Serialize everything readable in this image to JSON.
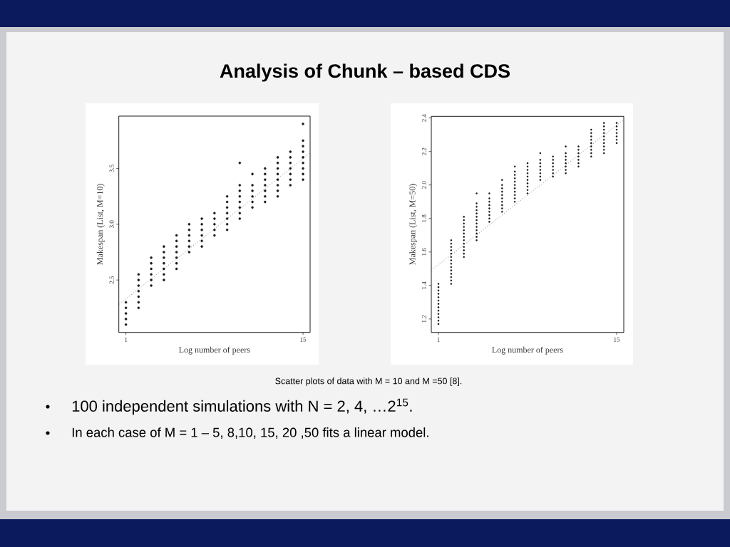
{
  "chart_data": [
    {
      "type": "scatter",
      "title": "Analysis of Chunk – based CDS",
      "xlabel": "Log number of peers",
      "ylabel": "Makespan (List, M=10)",
      "xlim": [
        0.44,
        15.56
      ],
      "ylim": [
        2.03,
        3.97
      ],
      "xticks": [
        1,
        15
      ],
      "yticks": [
        2.5,
        {
          "value": 3,
          "label": "3.0"
        },
        3.5
      ],
      "marker": "circle",
      "series": [
        {
          "color": "#1a1a1a",
          "x": [
            1,
            1,
            1,
            1,
            1,
            2,
            2,
            2,
            2,
            2,
            2,
            2,
            3,
            3,
            3,
            3,
            3,
            3,
            4,
            4,
            4,
            4,
            4,
            4,
            4,
            5,
            5,
            5,
            5,
            5,
            5,
            5,
            6,
            6,
            6,
            6,
            6,
            6,
            7,
            7,
            7,
            7,
            7,
            7,
            8,
            8,
            8,
            8,
            8,
            9,
            9,
            9,
            9,
            9,
            9,
            9,
            10,
            10,
            10,
            10,
            10,
            10,
            10,
            10,
            11,
            11,
            11,
            11,
            11,
            11,
            12,
            12,
            12,
            12,
            12,
            12,
            12,
            13,
            13,
            13,
            13,
            13,
            13,
            13,
            13,
            14,
            14,
            14,
            14,
            14,
            14,
            14,
            15,
            15,
            15,
            15,
            15,
            15,
            15,
            15,
            15
          ],
          "values": [
            2.3,
            2.25,
            2.2,
            2.15,
            2.1,
            2.55,
            2.5,
            2.45,
            2.4,
            2.35,
            2.3,
            2.25,
            2.7,
            2.65,
            2.6,
            2.55,
            2.5,
            2.45,
            2.8,
            2.75,
            2.7,
            2.65,
            2.6,
            2.55,
            2.5,
            2.9,
            2.85,
            2.8,
            2.75,
            2.7,
            2.65,
            2.6,
            3,
            2.95,
            2.9,
            2.85,
            2.8,
            2.75,
            3.05,
            3,
            2.95,
            2.9,
            2.85,
            2.8,
            3.1,
            3.05,
            3,
            2.95,
            2.9,
            3.25,
            3.2,
            3.15,
            3.1,
            3.05,
            3,
            2.95,
            3.55,
            3.35,
            3.3,
            3.25,
            3.2,
            3.15,
            3.1,
            3.05,
            3.45,
            3.35,
            3.3,
            3.25,
            3.2,
            3.15,
            3.5,
            3.45,
            3.4,
            3.35,
            3.3,
            3.25,
            3.2,
            3.6,
            3.55,
            3.5,
            3.45,
            3.4,
            3.35,
            3.3,
            3.25,
            3.65,
            3.6,
            3.55,
            3.5,
            3.45,
            3.4,
            3.35,
            3.9,
            3.75,
            3.7,
            3.65,
            3.6,
            3.55,
            3.5,
            3.45,
            3.4
          ]
        },
        {
          "type": "line",
          "color": "#666666",
          "line_style": "dotted",
          "marker": "none",
          "x": [
            0.44,
            15.56
          ],
          "values": [
            2.28,
            3.64
          ]
        }
      ],
      "annotations": [
        "Scatter plots of data with M = 10 and M =50 [8].",
        "100 independent simulations with N = 2, 4, …2$^{15}$.",
        "In each case of M = 1 – 5, 8,10, 15, 20 ,50 fits a linear model."
      ]
    },
    {
      "type": "scatter",
      "xlabel": "Log number of peers",
      "ylabel": "Makespan (List, M=50)",
      "xlim": [
        0.44,
        15.56
      ],
      "ylim": [
        1.12,
        2.41
      ],
      "xticks": [
        1,
        15
      ],
      "yticks": [
        1.2,
        1.4,
        1.6,
        1.8,
        {
          "value": 2.0,
          "label": "2.0"
        },
        2.2,
        2.4
      ],
      "marker": "circle",
      "series": [
        {
          "color": "#1a1a1a",
          "x": [
            1,
            1,
            1,
            1,
            1,
            1,
            1,
            1,
            1,
            1,
            1,
            1,
            1,
            2,
            2,
            2,
            2,
            2,
            2,
            2,
            2,
            2,
            2,
            2,
            2,
            2,
            2,
            3,
            3,
            3,
            3,
            3,
            3,
            3,
            3,
            3,
            3,
            3,
            3,
            3,
            4,
            4,
            4,
            4,
            4,
            4,
            4,
            4,
            4,
            4,
            4,
            4,
            4,
            5,
            5,
            5,
            5,
            5,
            5,
            5,
            5,
            5,
            6,
            6,
            6,
            6,
            6,
            6,
            6,
            6,
            6,
            6,
            7,
            7,
            7,
            7,
            7,
            7,
            7,
            7,
            7,
            7,
            7,
            8,
            8,
            8,
            8,
            8,
            8,
            8,
            8,
            8,
            8,
            9,
            9,
            9,
            9,
            9,
            9,
            9,
            9,
            10,
            10,
            10,
            10,
            10,
            10,
            10,
            11,
            11,
            11,
            11,
            11,
            11,
            11,
            11,
            12,
            12,
            12,
            12,
            12,
            12,
            12,
            13,
            13,
            13,
            13,
            13,
            13,
            13,
            13,
            13,
            14,
            14,
            14,
            14,
            14,
            14,
            14,
            14,
            14,
            14,
            15,
            15,
            15,
            15,
            15,
            15,
            15
          ],
          "values": [
            1.17,
            1.19,
            1.21,
            1.23,
            1.25,
            1.27,
            1.29,
            1.31,
            1.33,
            1.35,
            1.37,
            1.39,
            1.41,
            1.41,
            1.43,
            1.45,
            1.47,
            1.49,
            1.51,
            1.53,
            1.55,
            1.57,
            1.59,
            1.61,
            1.63,
            1.65,
            1.67,
            1.57,
            1.59,
            1.61,
            1.63,
            1.65,
            1.67,
            1.69,
            1.71,
            1.73,
            1.75,
            1.77,
            1.79,
            1.81,
            1.67,
            1.69,
            1.71,
            1.73,
            1.75,
            1.77,
            1.79,
            1.81,
            1.83,
            1.85,
            1.87,
            1.89,
            1.95,
            1.78,
            1.8,
            1.82,
            1.84,
            1.86,
            1.88,
            1.9,
            1.92,
            1.95,
            1.84,
            1.86,
            1.88,
            1.9,
            1.92,
            1.94,
            1.96,
            1.98,
            2.0,
            2.03,
            1.9,
            1.92,
            1.94,
            1.96,
            1.98,
            2.0,
            2.02,
            2.04,
            2.06,
            2.08,
            2.11,
            1.95,
            1.97,
            1.99,
            2.01,
            2.03,
            2.05,
            2.07,
            2.09,
            2.11,
            2.13,
            2.03,
            2.05,
            2.07,
            2.09,
            2.11,
            2.13,
            2.15,
            2.19,
            2.05,
            2.07,
            2.09,
            2.11,
            2.13,
            2.15,
            2.17,
            2.07,
            2.09,
            2.11,
            2.13,
            2.15,
            2.17,
            2.19,
            2.23,
            2.11,
            2.13,
            2.15,
            2.17,
            2.19,
            2.21,
            2.23,
            2.17,
            2.19,
            2.21,
            2.23,
            2.25,
            2.27,
            2.29,
            2.31,
            2.33,
            2.19,
            2.21,
            2.23,
            2.25,
            2.27,
            2.29,
            2.31,
            2.33,
            2.35,
            2.37,
            2.25,
            2.27,
            2.29,
            2.31,
            2.33,
            2.35,
            2.37
          ]
        },
        {
          "type": "line",
          "color": "#666666",
          "line_style": "dotted",
          "marker": "none",
          "x": [
            0.44,
            15.56
          ],
          "values": [
            1.49,
            2.39
          ]
        }
      ]
    }
  ]
}
